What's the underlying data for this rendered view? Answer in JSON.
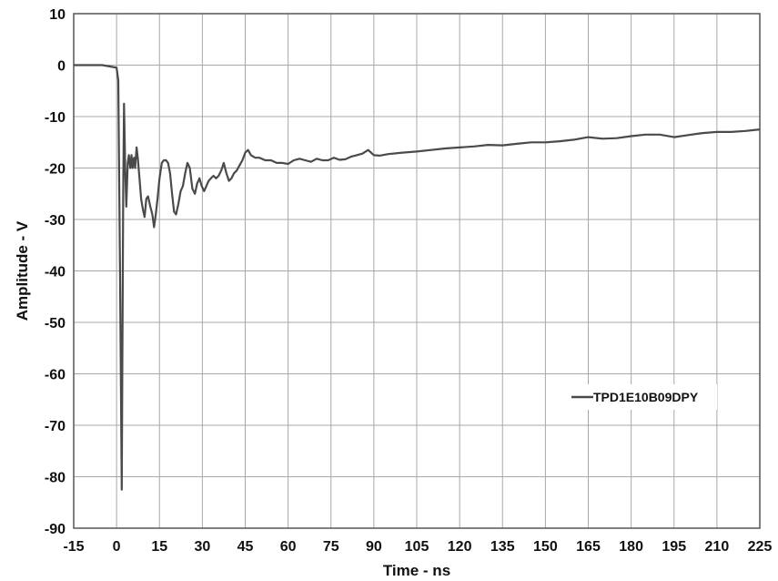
{
  "chart_data": {
    "type": "line",
    "xlabel": "Time - ns",
    "ylabel": "Amplitude - V",
    "xlim": [
      -15,
      225
    ],
    "ylim": [
      -90,
      10
    ],
    "x_ticks": [
      -15,
      0,
      15,
      30,
      45,
      60,
      75,
      90,
      105,
      120,
      135,
      150,
      165,
      180,
      195,
      210,
      225
    ],
    "y_ticks": [
      10,
      0,
      -10,
      -20,
      -30,
      -40,
      -50,
      -60,
      -70,
      -80,
      -90
    ],
    "x_tick_labels": [
      "-15",
      "0",
      "15",
      "30",
      "45",
      "60",
      "75",
      "90",
      "105",
      "120",
      "135",
      "150",
      "165",
      "180",
      "195",
      "210",
      "225"
    ],
    "y_tick_labels": [
      "10",
      "0",
      "-10",
      "-20",
      "-30",
      "-40",
      "-50",
      "-60",
      "-70",
      "-80",
      "-90"
    ],
    "grid": true,
    "legend_position": "lower-right",
    "series": [
      {
        "name": "TPD1E10B09DPY",
        "color": "#4a4a4a",
        "x": [
          -15,
          -10,
          -5,
          0,
          0.6,
          1.2,
          1.8,
          2.0,
          2.3,
          2.6,
          3.0,
          3.4,
          3.9,
          4.3,
          4.8,
          5.2,
          5.6,
          6.1,
          6.5,
          7.0,
          7.4,
          8.0,
          8.6,
          9.2,
          9.8,
          10.4,
          11.0,
          11.8,
          12.5,
          13.1,
          13.7,
          14.3,
          15.0,
          15.8,
          16.5,
          17.3,
          18.0,
          18.7,
          19.4,
          20.1,
          20.8,
          21.6,
          22.4,
          23.2,
          24.0,
          24.8,
          25.6,
          26.5,
          27.4,
          28.2,
          29.0,
          29.8,
          30.6,
          31.4,
          32.2,
          33.0,
          33.9,
          34.8,
          35.7,
          36.6,
          37.5,
          38.4,
          39.3,
          40.2,
          41.1,
          42.0,
          43.0,
          44.0,
          45.0,
          46.0,
          47.0,
          48.5,
          50,
          52,
          54,
          56,
          58,
          60,
          62,
          64,
          66,
          68,
          70,
          72,
          74,
          76,
          78,
          80,
          82,
          84,
          86,
          88,
          90,
          92,
          95,
          100,
          105,
          110,
          115,
          120,
          125,
          130,
          135,
          140,
          145,
          150,
          155,
          160,
          165,
          170,
          175,
          180,
          185,
          190,
          195,
          200,
          205,
          210,
          215,
          220,
          225
        ],
        "y": [
          0,
          0,
          0,
          -0.5,
          -3,
          -40,
          -82.5,
          -60,
          -25,
          -7.5,
          -20,
          -27.5,
          -19,
          -17.5,
          -20,
          -17.5,
          -20,
          -18,
          -20,
          -16,
          -18,
          -22,
          -26,
          -28,
          -29.5,
          -26,
          -25.5,
          -27.5,
          -29,
          -31.5,
          -29,
          -26,
          -22,
          -19,
          -18.5,
          -18.5,
          -19,
          -21,
          -25,
          -28.5,
          -29,
          -27,
          -24.5,
          -23.5,
          -21,
          -19,
          -20,
          -24,
          -25,
          -23,
          -22,
          -23.5,
          -24.5,
          -23.5,
          -22.5,
          -22,
          -21.5,
          -22,
          -21.5,
          -20.5,
          -19,
          -21,
          -22.5,
          -22,
          -21,
          -20.5,
          -19.5,
          -18.5,
          -17,
          -16.5,
          -17.5,
          -18,
          -18,
          -18.5,
          -18.5,
          -19,
          -19,
          -19.2,
          -18.5,
          -18.2,
          -18.5,
          -18.8,
          -18.2,
          -18.5,
          -18.5,
          -18.0,
          -18.4,
          -18.3,
          -17.8,
          -17.5,
          -17.2,
          -16.5,
          -17.5,
          -17.6,
          -17.3,
          -17.0,
          -16.8,
          -16.5,
          -16.2,
          -16.0,
          -15.8,
          -15.5,
          -15.6,
          -15.3,
          -15.0,
          -15.0,
          -14.8,
          -14.5,
          -14.0,
          -14.3,
          -14.2,
          -13.8,
          -13.5,
          -13.5,
          -14.0,
          -13.6,
          -13.2,
          -13.0,
          -13.0,
          -12.8,
          -12.5
        ]
      }
    ]
  }
}
